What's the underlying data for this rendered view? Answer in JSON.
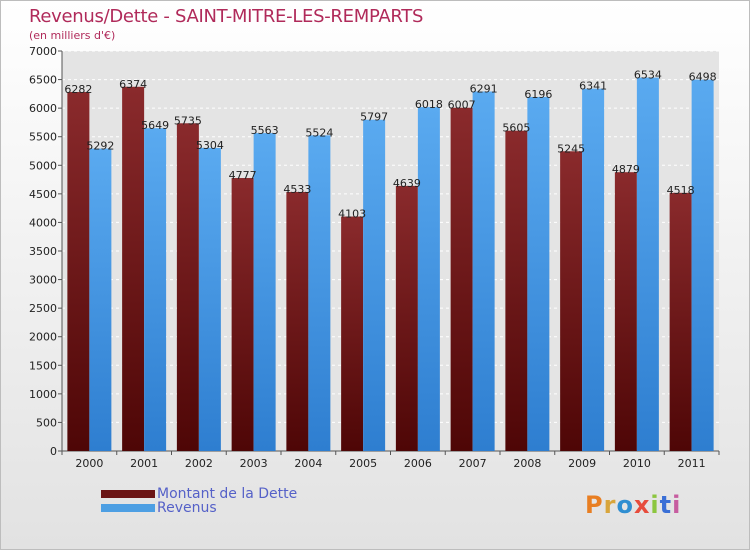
{
  "title": "Revenus/Dette - SAINT-MITRE-LES-REMPARTS",
  "subtitle": "(en milliers d'€)",
  "logo_text": "Proxiti",
  "logo_colors": [
    "#e87e22",
    "#d8a53b",
    "#2f8ed1",
    "#e74c3c",
    "#8cc63f",
    "#3a6fd6",
    "#c75da0"
  ],
  "chart_data": {
    "type": "bar",
    "categories": [
      "2000",
      "2001",
      "2002",
      "2003",
      "2004",
      "2005",
      "2006",
      "2007",
      "2008",
      "2009",
      "2010",
      "2011"
    ],
    "series": [
      {
        "name": "Montant de la Dette",
        "color": "#7a1f22",
        "values": [
          6282,
          6374,
          5735,
          4777,
          4533,
          4103,
          4639,
          6007,
          5605,
          5245,
          4879,
          4518
        ]
      },
      {
        "name": "Revenus",
        "color": "#4d9fe3",
        "values": [
          5292,
          5649,
          5304,
          5563,
          5524,
          5797,
          6018,
          6291,
          6196,
          6341,
          6534,
          6498
        ]
      }
    ],
    "yticks": [
      0,
      500,
      1000,
      1500,
      2000,
      2500,
      3000,
      3500,
      4000,
      4500,
      5000,
      5500,
      6000,
      6500,
      7000
    ],
    "ylim": [
      0,
      7000
    ],
    "grid": true,
    "legend": "bottom-left"
  }
}
